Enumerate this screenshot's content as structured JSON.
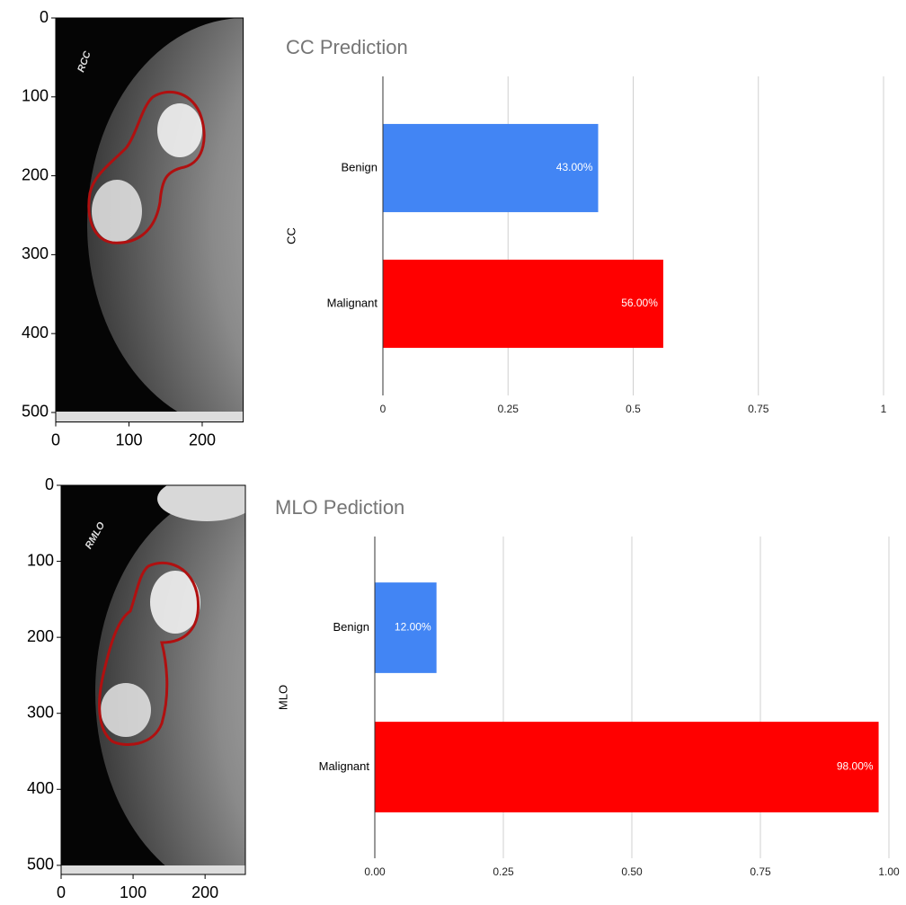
{
  "chart_data": [
    {
      "type": "image",
      "xlim": [
        0,
        256
      ],
      "ylim": [
        0,
        512
      ],
      "xticks": [
        0,
        100,
        200
      ],
      "yticks": [
        0,
        100,
        200,
        300,
        400,
        500
      ]
    },
    {
      "type": "barh",
      "title": "CC Prediction",
      "ylabel": "CC",
      "categories": [
        "Benign",
        "Malignant"
      ],
      "values": [
        0.43,
        0.56
      ],
      "value_labels": [
        "43.00%",
        "56.00%"
      ],
      "colors": [
        "#4285f4",
        "#ff0000"
      ],
      "xlim": [
        0,
        1
      ],
      "xticks": [
        0,
        0.25,
        0.5,
        0.75,
        1
      ],
      "grid": true
    },
    {
      "type": "image",
      "xlim": [
        0,
        256
      ],
      "ylim": [
        0,
        512
      ],
      "xticks": [
        0,
        100,
        200
      ],
      "yticks": [
        0,
        100,
        200,
        300,
        400,
        500
      ]
    },
    {
      "type": "barh",
      "title": "MLO Pediction",
      "ylabel": "MLO",
      "categories": [
        "Benign",
        "Malignant"
      ],
      "values": [
        0.12,
        0.98
      ],
      "value_labels": [
        "12.00%",
        "98.00%"
      ],
      "colors": [
        "#4285f4",
        "#ff0000"
      ],
      "xlim": [
        0,
        1
      ],
      "xticks": [
        {
          "value": 0,
          "label": "0.00"
        },
        {
          "value": 0.25,
          "label": "0.25"
        },
        {
          "value": 0.5,
          "label": "0.50"
        },
        {
          "value": 0.75,
          "label": "0.75"
        },
        {
          "value": 1,
          "label": "1.00"
        }
      ],
      "grid": true
    }
  ]
}
